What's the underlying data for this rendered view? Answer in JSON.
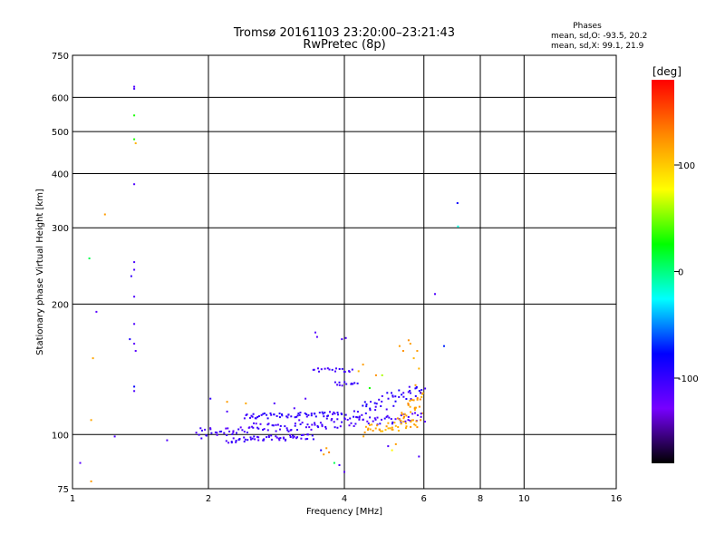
{
  "chart_data": {
    "type": "scatter",
    "title": "Tromsø 20161103 23:20:00–23:21:43",
    "subtitle": "RwPretec (8p)",
    "xlabel": "Frequency [MHz]",
    "ylabel": "Stationary phase Virtual Height [km]",
    "xscale": "log",
    "yscale": "log",
    "xlim": [
      1,
      16
    ],
    "ylim": [
      75,
      750
    ],
    "xticks": [
      1,
      2,
      4,
      6,
      8,
      10,
      16
    ],
    "yticks": [
      75,
      100,
      200,
      300,
      400,
      500,
      600,
      750
    ],
    "grid": true,
    "phase_stats": {
      "title": "Phases",
      "o_line": "mean, sd,O: -93.5, 20.2",
      "x_line": "mean, sd,X:  99.1, 21.9"
    },
    "colorbar": {
      "label": "[deg]",
      "min": -180,
      "max": 180,
      "ticks": [
        100,
        0,
        -100
      ],
      "tick_labels": [
        "100",
        "0",
        "-100"
      ],
      "colors": [
        "#000000",
        "#7700ff",
        "#0000ff",
        "#00ffff",
        "#00ff00",
        "#ffff00",
        "#ff8800",
        "#ff0000"
      ]
    },
    "points": [
      [
        1.04,
        86,
        -115
      ],
      [
        1.09,
        255,
        10
      ],
      [
        1.11,
        150,
        115
      ],
      [
        1.1,
        108,
        115
      ],
      [
        1.1,
        78,
        120
      ],
      [
        1.13,
        192,
        -115
      ],
      [
        1.18,
        322,
        120
      ],
      [
        1.24,
        99,
        -110
      ],
      [
        1.37,
        635,
        -110
      ],
      [
        1.37,
        628,
        -110
      ],
      [
        1.37,
        545,
        30
      ],
      [
        1.37,
        480,
        30
      ],
      [
        1.38,
        470,
        110
      ],
      [
        1.37,
        378,
        -110
      ],
      [
        1.37,
        250,
        -110
      ],
      [
        1.37,
        240,
        -110
      ],
      [
        1.35,
        232,
        -100
      ],
      [
        1.37,
        208,
        -110
      ],
      [
        1.37,
        180,
        -110
      ],
      [
        1.34,
        166,
        -90
      ],
      [
        1.37,
        162,
        -115
      ],
      [
        1.38,
        156,
        -115
      ],
      [
        1.37,
        129,
        -80
      ],
      [
        1.37,
        126,
        -110
      ],
      [
        1.62,
        97,
        -110
      ],
      [
        1.88,
        101,
        -110
      ],
      [
        1.93,
        98,
        -100
      ],
      [
        2.02,
        121,
        -100
      ],
      [
        2.2,
        113,
        -110
      ],
      [
        2.2,
        119,
        120
      ],
      [
        2.42,
        118,
        115
      ],
      [
        2.55,
        109,
        -105
      ],
      [
        2.8,
        118,
        -110
      ],
      [
        3.1,
        115,
        -110
      ],
      [
        3.28,
        121,
        -115
      ],
      [
        3.45,
        172,
        -115
      ],
      [
        3.48,
        168,
        -115
      ],
      [
        3.95,
        166,
        -110
      ],
      [
        4.03,
        167,
        -110
      ],
      [
        3.5,
        104,
        -100
      ],
      [
        3.55,
        92,
        -90
      ],
      [
        3.6,
        90,
        120
      ],
      [
        3.65,
        93,
        120
      ],
      [
        3.7,
        91,
        130
      ],
      [
        3.8,
        86,
        10
      ],
      [
        3.9,
        85,
        -110
      ],
      [
        4.0,
        82,
        -115
      ],
      [
        4.3,
        140,
        110
      ],
      [
        4.4,
        145,
        120
      ],
      [
        4.55,
        128,
        30
      ],
      [
        4.7,
        137,
        125
      ],
      [
        4.85,
        137,
        60
      ],
      [
        5.1,
        92,
        80
      ],
      [
        5.2,
        95,
        120
      ],
      [
        5.0,
        94,
        -110
      ],
      [
        5.3,
        160,
        120
      ],
      [
        5.4,
        156,
        125
      ],
      [
        5.55,
        165,
        125
      ],
      [
        5.6,
        162,
        120
      ],
      [
        5.7,
        150,
        110
      ],
      [
        5.8,
        156,
        120
      ],
      [
        5.85,
        142,
        110
      ],
      [
        5.75,
        130,
        120
      ],
      [
        5.7,
        120,
        120
      ],
      [
        5.9,
        125,
        120
      ],
      [
        5.95,
        124,
        110
      ],
      [
        5.9,
        108,
        125
      ],
      [
        5.8,
        104,
        125
      ],
      [
        5.85,
        89,
        -110
      ],
      [
        5.95,
        112,
        120
      ],
      [
        6.35,
        211,
        -110
      ],
      [
        7.12,
        342,
        -80
      ],
      [
        7.14,
        302,
        -20
      ],
      [
        6.65,
        160,
        -70
      ]
    ],
    "bands": [
      {
        "x_from": 1.9,
        "x_to": 6.0,
        "h_from": 101,
        "h_to": 110,
        "spread": 3.0,
        "count": 130,
        "phases": [
          -120,
          -95
        ]
      },
      {
        "x_from": 2.2,
        "x_to": 3.4,
        "h_from": 97,
        "h_to": 99,
        "spread": 1.5,
        "count": 55,
        "phases": [
          -115,
          -95
        ]
      },
      {
        "x_from": 2.4,
        "x_to": 4.0,
        "h_from": 110,
        "h_to": 112,
        "spread": 1.5,
        "count": 60,
        "phases": [
          -110,
          -90
        ]
      },
      {
        "x_from": 3.4,
        "x_to": 4.2,
        "h_from": 141,
        "h_to": 141,
        "spread": 1.5,
        "count": 18,
        "phases": [
          -110,
          -95
        ]
      },
      {
        "x_from": 3.8,
        "x_to": 4.3,
        "h_from": 131,
        "h_to": 131,
        "spread": 1.5,
        "count": 12,
        "phases": [
          -110,
          -95
        ]
      },
      {
        "x_from": 4.2,
        "x_to": 6.0,
        "h_from": 112,
        "h_to": 128,
        "spread": 5.0,
        "count": 50,
        "phases": [
          -110,
          -85
        ]
      },
      {
        "x_from": 4.4,
        "x_to": 5.8,
        "h_from": 102,
        "h_to": 106,
        "spread": 3.0,
        "count": 40,
        "phases": [
          105,
          125
        ]
      },
      {
        "x_from": 5.3,
        "x_to": 5.95,
        "h_from": 108,
        "h_to": 122,
        "spread": 5.0,
        "count": 25,
        "phases": [
          110,
          130
        ]
      }
    ]
  }
}
